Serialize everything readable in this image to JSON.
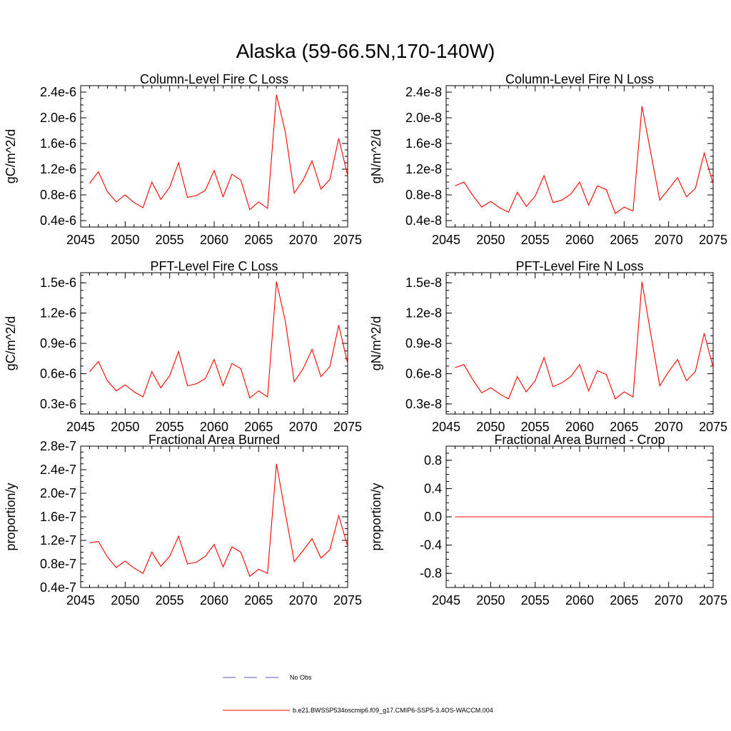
{
  "title": "Alaska (59-66.5N,170-140W)",
  "legend": {
    "no_obs_label": "No Obs",
    "no_obs_color": "#5555bb",
    "model_label": "b.e21.BWSSP534oscmip6.f09_g17.CMIP6-SSP5-3.4OS-WACCM.004",
    "model_color": "#ff0000"
  },
  "chart_data": [
    {
      "type": "line",
      "title": "Column-Level Fire C Loss",
      "ylabel": "gC/m^2/d",
      "xlim": [
        2045,
        2075
      ],
      "ylim": [
        3e-07,
        2.5e-06
      ],
      "xticks": [
        2045,
        2050,
        2055,
        2060,
        2065,
        2070,
        2075
      ],
      "yticks": [
        4e-07,
        8e-07,
        1.2e-06,
        1.6e-06,
        2e-06,
        2.4e-06
      ],
      "ytick_labels": [
        "0.4e-6",
        "0.8e-6",
        "1.2e-6",
        "1.6e-6",
        "2.0e-6",
        "2.4e-6"
      ],
      "series": [
        {
          "x": [
            2046,
            2047,
            2048,
            2049,
            2050,
            2051,
            2052,
            2053,
            2054,
            2055,
            2056,
            2057,
            2058,
            2059,
            2060,
            2061,
            2062,
            2063,
            2064,
            2065,
            2066,
            2067,
            2068,
            2069,
            2070,
            2071,
            2072,
            2073,
            2074,
            2075
          ],
          "values": [
            9.8e-07,
            1.16e-06,
            8.5e-07,
            6.9e-07,
            8e-07,
            6.8e-07,
            6e-07,
            1e-06,
            7.3e-07,
            9.2e-07,
            1.3e-06,
            7.6e-07,
            7.9e-07,
            8.7e-07,
            1.18e-06,
            7.7e-07,
            1.12e-06,
            1.03e-06,
            5.7e-07,
            6.9e-07,
            5.9e-07,
            2.36e-06,
            1.78e-06,
            8.3e-07,
            1.03e-06,
            1.33e-06,
            8.9e-07,
            1.04e-06,
            1.68e-06,
            1.1e-06
          ]
        }
      ]
    },
    {
      "type": "line",
      "title": "Column-Level Fire N Loss",
      "ylabel": "gN/m^2/d",
      "xlim": [
        2045,
        2075
      ],
      "ylim": [
        3e-09,
        2.5e-08
      ],
      "xticks": [
        2045,
        2050,
        2055,
        2060,
        2065,
        2070,
        2075
      ],
      "yticks": [
        4e-09,
        8e-09,
        1.2e-08,
        1.6e-08,
        2e-08,
        2.4e-08
      ],
      "ytick_labels": [
        "0.4e-8",
        "0.8e-8",
        "1.2e-8",
        "1.6e-8",
        "2.0e-8",
        "2.4e-8"
      ],
      "series": [
        {
          "x": [
            2046,
            2047,
            2048,
            2049,
            2050,
            2051,
            2052,
            2053,
            2054,
            2055,
            2056,
            2057,
            2058,
            2059,
            2060,
            2061,
            2062,
            2063,
            2064,
            2065,
            2066,
            2067,
            2068,
            2069,
            2070,
            2071,
            2072,
            2073,
            2074,
            2075
          ],
          "values": [
            9.4e-09,
            1e-08,
            7.9e-09,
            6.1e-09,
            7e-09,
            6e-09,
            5.3e-09,
            8.4e-09,
            6.2e-09,
            7.8e-09,
            1.1e-08,
            6.8e-09,
            7.2e-09,
            8.1e-09,
            1e-08,
            6.4e-09,
            9.4e-09,
            8.8e-09,
            5.1e-09,
            6.1e-09,
            5.5e-09,
            2.18e-08,
            1.45e-08,
            7.2e-09,
            8.9e-09,
            1.07e-08,
            7.7e-09,
            9e-09,
            1.45e-08,
            9.7e-09
          ]
        }
      ]
    },
    {
      "type": "line",
      "title": "PFT-Level Fire C Loss",
      "ylabel": "gC/m^2/d",
      "xlim": [
        2045,
        2075
      ],
      "ylim": [
        2e-07,
        1.6e-06
      ],
      "xticks": [
        2045,
        2050,
        2055,
        2060,
        2065,
        2070,
        2075
      ],
      "yticks": [
        3e-07,
        6e-07,
        9e-07,
        1.2e-06,
        1.5e-06
      ],
      "ytick_labels": [
        "0.3e-6",
        "0.6e-6",
        "0.9e-6",
        "1.2e-6",
        "1.5e-6"
      ],
      "series": [
        {
          "x": [
            2046,
            2047,
            2048,
            2049,
            2050,
            2051,
            2052,
            2053,
            2054,
            2055,
            2056,
            2057,
            2058,
            2059,
            2060,
            2061,
            2062,
            2063,
            2064,
            2065,
            2066,
            2067,
            2068,
            2069,
            2070,
            2071,
            2072,
            2073,
            2074,
            2075
          ],
          "values": [
            6.2e-07,
            7.2e-07,
            5.3e-07,
            4.3e-07,
            4.9e-07,
            4.2e-07,
            3.7e-07,
            6.2e-07,
            4.6e-07,
            5.8e-07,
            8.2e-07,
            4.8e-07,
            5e-07,
            5.5e-07,
            7.4e-07,
            4.8e-07,
            7e-07,
            6.5e-07,
            3.6e-07,
            4.3e-07,
            3.7e-07,
            1.51e-06,
            1.12e-06,
            5.2e-07,
            6.5e-07,
            8.4e-07,
            5.7e-07,
            6.7e-07,
            1.08e-06,
            7e-07
          ]
        }
      ]
    },
    {
      "type": "line",
      "title": "PFT-Level Fire N Loss",
      "ylabel": "gN/m^2/d",
      "xlim": [
        2045,
        2075
      ],
      "ylim": [
        2e-09,
        1.6e-08
      ],
      "xticks": [
        2045,
        2050,
        2055,
        2060,
        2065,
        2070,
        2075
      ],
      "yticks": [
        3e-09,
        6e-09,
        9e-09,
        1.2e-08,
        1.5e-08
      ],
      "ytick_labels": [
        "0.3e-8",
        "0.6e-8",
        "0.9e-8",
        "1.2e-8",
        "1.5e-8"
      ],
      "series": [
        {
          "x": [
            2046,
            2047,
            2048,
            2049,
            2050,
            2051,
            2052,
            2053,
            2054,
            2055,
            2056,
            2057,
            2058,
            2059,
            2060,
            2061,
            2062,
            2063,
            2064,
            2065,
            2066,
            2067,
            2068,
            2069,
            2070,
            2071,
            2072,
            2073,
            2074,
            2075
          ],
          "values": [
            6.6e-09,
            6.9e-09,
            5.4e-09,
            4.1e-09,
            4.6e-09,
            4e-09,
            3.5e-09,
            5.7e-09,
            4.2e-09,
            5.3e-09,
            7.6e-09,
            4.7e-09,
            5.1e-09,
            5.7e-09,
            6.9e-09,
            4.3e-09,
            6.3e-09,
            5.9e-09,
            3.5e-09,
            4.2e-09,
            3.7e-09,
            1.51e-08,
            9.9e-09,
            4.8e-09,
            6.2e-09,
            7.4e-09,
            5.3e-09,
            6.2e-09,
            1e-08,
            6.6e-09
          ]
        }
      ]
    },
    {
      "type": "line",
      "title": "Fractional Area Burned",
      "ylabel": "proportion/y",
      "xlim": [
        2045,
        2075
      ],
      "ylim": [
        4e-08,
        2.8e-07
      ],
      "xticks": [
        2045,
        2050,
        2055,
        2060,
        2065,
        2070,
        2075
      ],
      "yticks": [
        4e-08,
        8e-08,
        1.2e-07,
        1.6e-07,
        2e-07,
        2.4e-07,
        2.8e-07
      ],
      "ytick_labels": [
        "0.4e-7",
        "0.8e-7",
        "1.2e-7",
        "1.6e-7",
        "2.0e-7",
        "2.4e-7",
        "2.8e-7"
      ],
      "series": [
        {
          "x": [
            2046,
            2047,
            2048,
            2049,
            2050,
            2051,
            2052,
            2053,
            2054,
            2055,
            2056,
            2057,
            2058,
            2059,
            2060,
            2061,
            2062,
            2063,
            2064,
            2065,
            2066,
            2067,
            2068,
            2069,
            2070,
            2071,
            2072,
            2073,
            2074,
            2075
          ],
          "values": [
            1.16e-07,
            1.18e-07,
            9.2e-08,
            7.4e-08,
            8.5e-08,
            7.3e-08,
            6.4e-08,
            1e-07,
            7.6e-08,
            9.3e-08,
            1.27e-07,
            8e-08,
            8.3e-08,
            9.3e-08,
            1.13e-07,
            7.5e-08,
            1.09e-07,
            1e-07,
            5.9e-08,
            7.1e-08,
            6.4e-08,
            2.5e-07,
            1.66e-07,
            8.4e-08,
            1.03e-07,
            1.23e-07,
            9e-08,
            1.04e-07,
            1.62e-07,
            1.1e-07
          ]
        }
      ]
    },
    {
      "type": "line",
      "title": "Fractional Area Burned - Crop",
      "ylabel": "proportion/y",
      "xlim": [
        2045,
        2075
      ],
      "ylim": [
        -1.0,
        1.0
      ],
      "xticks": [
        2045,
        2050,
        2055,
        2060,
        2065,
        2070,
        2075
      ],
      "yticks": [
        -0.8,
        -0.4,
        0.0,
        0.4,
        0.8
      ],
      "ytick_labels": [
        "-0.8",
        "-0.4",
        "0.0",
        "0.4",
        "0.8"
      ],
      "series": [
        {
          "x": [
            2046,
            2075
          ],
          "values": [
            0.0,
            0.0
          ]
        }
      ]
    }
  ]
}
